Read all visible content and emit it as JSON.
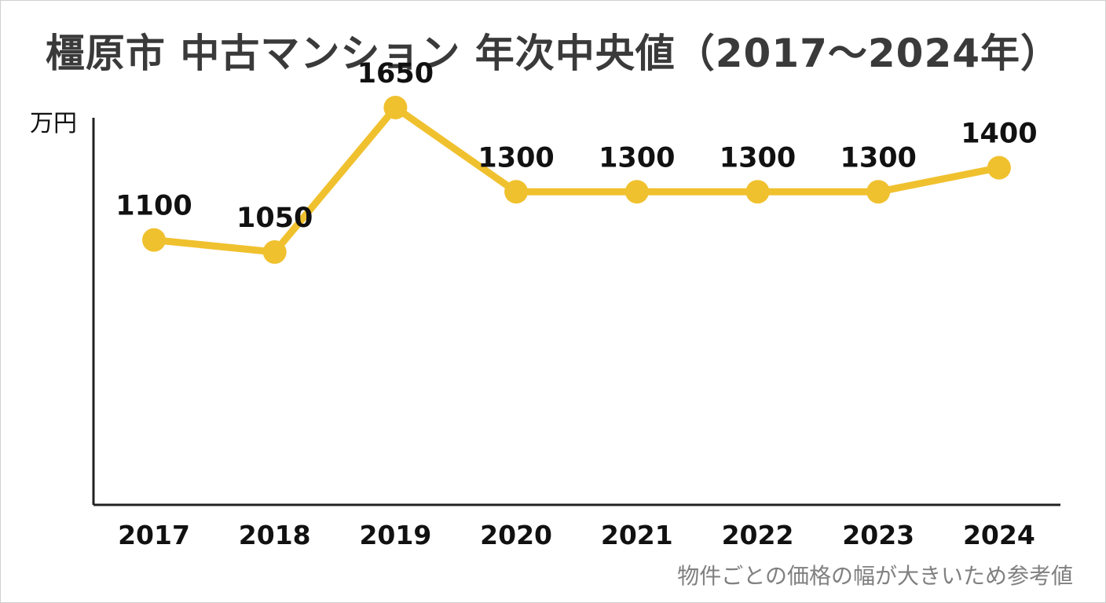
{
  "chart_data": {
    "type": "line",
    "title": "橿原市 中古マンション 年次中央値（2017〜2024年）",
    "ylabel": "万円",
    "xlabel": "",
    "categories": [
      "2017",
      "2018",
      "2019",
      "2020",
      "2021",
      "2022",
      "2023",
      "2024"
    ],
    "values": [
      1100,
      1050,
      1650,
      1300,
      1300,
      1300,
      1300,
      1400
    ],
    "data_labels": [
      "1100",
      "1050",
      "1650",
      "1300",
      "1300",
      "1300",
      "1300",
      "1400"
    ],
    "ylim": [
      0,
      1800
    ],
    "grid": false,
    "legend": "none",
    "note": "物件ごとの価格の幅が大きいため参考値",
    "colors": {
      "series": "#F0C12E",
      "axis": "#222222",
      "title": "#3a3a3a",
      "note": "#808080"
    }
  }
}
